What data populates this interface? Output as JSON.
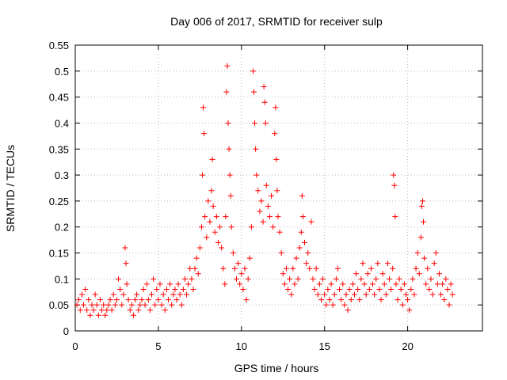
{
  "chart_data": {
    "type": "scatter",
    "title": "Day 006 of 2017, SRMTID for receiver sulp",
    "xlabel": "GPS time / hours",
    "ylabel": "SRMTID / TECUs",
    "xlim": [
      0,
      24.5
    ],
    "ylim": [
      0,
      0.55
    ],
    "x_ticks": [
      "0",
      "5",
      "10",
      "15",
      "20"
    ],
    "x_tick_values": [
      0,
      5,
      10,
      15,
      20
    ],
    "y_ticks": [
      "0",
      "0.05",
      "0.1",
      "0.15",
      "0.2",
      "0.25",
      "0.3",
      "0.35",
      "0.4",
      "0.45",
      "0.5",
      "0.55"
    ],
    "y_tick_values": [
      0,
      0.05,
      0.1,
      0.15,
      0.2,
      0.25,
      0.3,
      0.35,
      0.4,
      0.45,
      0.5,
      0.55
    ],
    "grid": true,
    "marker": "plus",
    "marker_color": "#ff0000",
    "series": [
      {
        "name": "SRMTID",
        "points": [
          [
            0.1,
            0.05
          ],
          [
            0.2,
            0.06
          ],
          [
            0.3,
            0.04
          ],
          [
            0.4,
            0.07
          ],
          [
            0.5,
            0.05
          ],
          [
            0.6,
            0.08
          ],
          [
            0.7,
            0.04
          ],
          [
            0.8,
            0.06
          ],
          [
            0.9,
            0.03
          ],
          [
            1.0,
            0.05
          ],
          [
            1.1,
            0.04
          ],
          [
            1.2,
            0.07
          ],
          [
            1.3,
            0.05
          ],
          [
            1.4,
            0.03
          ],
          [
            1.5,
            0.06
          ],
          [
            1.6,
            0.04
          ],
          [
            1.7,
            0.05
          ],
          [
            1.8,
            0.03
          ],
          [
            1.9,
            0.04
          ],
          [
            2.0,
            0.05
          ],
          [
            2.1,
            0.06
          ],
          [
            2.2,
            0.04
          ],
          [
            2.3,
            0.07
          ],
          [
            2.4,
            0.05
          ],
          [
            2.5,
            0.06
          ],
          [
            2.6,
            0.1
          ],
          [
            2.7,
            0.08
          ],
          [
            2.8,
            0.05
          ],
          [
            2.9,
            0.07
          ],
          [
            3.0,
            0.16
          ],
          [
            3.05,
            0.13
          ],
          [
            3.1,
            0.09
          ],
          [
            3.2,
            0.06
          ],
          [
            3.3,
            0.04
          ],
          [
            3.4,
            0.05
          ],
          [
            3.5,
            0.03
          ],
          [
            3.6,
            0.06
          ],
          [
            3.7,
            0.07
          ],
          [
            3.8,
            0.04
          ],
          [
            3.9,
            0.05
          ],
          [
            4.0,
            0.06
          ],
          [
            4.1,
            0.08
          ],
          [
            4.2,
            0.05
          ],
          [
            4.3,
            0.09
          ],
          [
            4.4,
            0.06
          ],
          [
            4.5,
            0.04
          ],
          [
            4.6,
            0.07
          ],
          [
            4.7,
            0.1
          ],
          [
            4.8,
            0.05
          ],
          [
            4.9,
            0.08
          ],
          [
            5.0,
            0.06
          ],
          [
            5.1,
            0.09
          ],
          [
            5.2,
            0.05
          ],
          [
            5.3,
            0.07
          ],
          [
            5.4,
            0.04
          ],
          [
            5.5,
            0.08
          ],
          [
            5.6,
            0.06
          ],
          [
            5.7,
            0.09
          ],
          [
            5.8,
            0.05
          ],
          [
            5.9,
            0.07
          ],
          [
            6.0,
            0.08
          ],
          [
            6.1,
            0.06
          ],
          [
            6.2,
            0.09
          ],
          [
            6.3,
            0.07
          ],
          [
            6.4,
            0.05
          ],
          [
            6.5,
            0.08
          ],
          [
            6.6,
            0.1
          ],
          [
            6.7,
            0.07
          ],
          [
            6.8,
            0.09
          ],
          [
            6.9,
            0.12
          ],
          [
            7.0,
            0.1
          ],
          [
            7.1,
            0.08
          ],
          [
            7.2,
            0.12
          ],
          [
            7.3,
            0.14
          ],
          [
            7.4,
            0.11
          ],
          [
            7.5,
            0.16
          ],
          [
            7.6,
            0.2
          ],
          [
            7.65,
            0.3
          ],
          [
            7.7,
            0.43
          ],
          [
            7.75,
            0.38
          ],
          [
            7.8,
            0.22
          ],
          [
            7.9,
            0.18
          ],
          [
            8.0,
            0.25
          ],
          [
            8.1,
            0.21
          ],
          [
            8.2,
            0.27
          ],
          [
            8.25,
            0.33
          ],
          [
            8.3,
            0.24
          ],
          [
            8.4,
            0.19
          ],
          [
            8.5,
            0.22
          ],
          [
            8.6,
            0.17
          ],
          [
            8.7,
            0.2
          ],
          [
            8.8,
            0.16
          ],
          [
            8.9,
            0.12
          ],
          [
            9.0,
            0.09
          ],
          [
            9.05,
            0.22
          ],
          [
            9.1,
            0.46
          ],
          [
            9.15,
            0.51
          ],
          [
            9.2,
            0.4
          ],
          [
            9.25,
            0.35
          ],
          [
            9.3,
            0.3
          ],
          [
            9.35,
            0.26
          ],
          [
            9.4,
            0.2
          ],
          [
            9.5,
            0.15
          ],
          [
            9.6,
            0.12
          ],
          [
            9.7,
            0.1
          ],
          [
            9.8,
            0.13
          ],
          [
            9.9,
            0.09
          ],
          [
            10.0,
            0.11
          ],
          [
            10.1,
            0.08
          ],
          [
            10.2,
            0.12
          ],
          [
            10.3,
            0.06
          ],
          [
            10.4,
            0.1
          ],
          [
            10.5,
            0.14
          ],
          [
            10.6,
            0.2
          ],
          [
            10.7,
            0.5
          ],
          [
            10.75,
            0.46
          ],
          [
            10.8,
            0.4
          ],
          [
            10.85,
            0.35
          ],
          [
            10.9,
            0.3
          ],
          [
            11.0,
            0.27
          ],
          [
            11.1,
            0.23
          ],
          [
            11.2,
            0.25
          ],
          [
            11.3,
            0.21
          ],
          [
            11.35,
            0.47
          ],
          [
            11.4,
            0.44
          ],
          [
            11.45,
            0.4
          ],
          [
            11.5,
            0.28
          ],
          [
            11.6,
            0.24
          ],
          [
            11.7,
            0.22
          ],
          [
            11.8,
            0.26
          ],
          [
            11.9,
            0.2
          ],
          [
            12.0,
            0.38
          ],
          [
            12.05,
            0.43
          ],
          [
            12.1,
            0.33
          ],
          [
            12.15,
            0.27
          ],
          [
            12.2,
            0.22
          ],
          [
            12.3,
            0.19
          ],
          [
            12.4,
            0.15
          ],
          [
            12.5,
            0.11
          ],
          [
            12.6,
            0.09
          ],
          [
            12.7,
            0.12
          ],
          [
            12.8,
            0.08
          ],
          [
            12.9,
            0.1
          ],
          [
            13.0,
            0.07
          ],
          [
            13.1,
            0.12
          ],
          [
            13.2,
            0.09
          ],
          [
            13.3,
            0.14
          ],
          [
            13.4,
            0.1
          ],
          [
            13.5,
            0.16
          ],
          [
            13.6,
            0.19
          ],
          [
            13.65,
            0.26
          ],
          [
            13.7,
            0.22
          ],
          [
            13.8,
            0.17
          ],
          [
            13.9,
            0.13
          ],
          [
            14.0,
            0.15
          ],
          [
            14.1,
            0.12
          ],
          [
            14.2,
            0.21
          ],
          [
            14.3,
            0.1
          ],
          [
            14.4,
            0.08
          ],
          [
            14.5,
            0.12
          ],
          [
            14.6,
            0.07
          ],
          [
            14.7,
            0.09
          ],
          [
            14.8,
            0.06
          ],
          [
            14.9,
            0.1
          ],
          [
            15.0,
            0.07
          ],
          [
            15.1,
            0.05
          ],
          [
            15.2,
            0.08
          ],
          [
            15.3,
            0.06
          ],
          [
            15.4,
            0.09
          ],
          [
            15.5,
            0.05
          ],
          [
            15.6,
            0.07
          ],
          [
            15.7,
            0.1
          ],
          [
            15.8,
            0.12
          ],
          [
            15.9,
            0.08
          ],
          [
            16.0,
            0.06
          ],
          [
            16.1,
            0.09
          ],
          [
            16.2,
            0.05
          ],
          [
            16.3,
            0.07
          ],
          [
            16.4,
            0.04
          ],
          [
            16.5,
            0.08
          ],
          [
            16.6,
            0.06
          ],
          [
            16.7,
            0.09
          ],
          [
            16.8,
            0.07
          ],
          [
            16.9,
            0.11
          ],
          [
            17.0,
            0.08
          ],
          [
            17.1,
            0.06
          ],
          [
            17.2,
            0.1
          ],
          [
            17.3,
            0.13
          ],
          [
            17.4,
            0.09
          ],
          [
            17.5,
            0.07
          ],
          [
            17.6,
            0.11
          ],
          [
            17.7,
            0.08
          ],
          [
            17.8,
            0.12
          ],
          [
            17.9,
            0.09
          ],
          [
            18.0,
            0.07
          ],
          [
            18.1,
            0.1
          ],
          [
            18.2,
            0.13
          ],
          [
            18.3,
            0.08
          ],
          [
            18.4,
            0.06
          ],
          [
            18.5,
            0.11
          ],
          [
            18.6,
            0.09
          ],
          [
            18.7,
            0.07
          ],
          [
            18.8,
            0.13
          ],
          [
            18.9,
            0.1
          ],
          [
            19.0,
            0.08
          ],
          [
            19.1,
            0.12
          ],
          [
            19.15,
            0.3
          ],
          [
            19.2,
            0.28
          ],
          [
            19.25,
            0.22
          ],
          [
            19.3,
            0.09
          ],
          [
            19.4,
            0.06
          ],
          [
            19.5,
            0.1
          ],
          [
            19.6,
            0.08
          ],
          [
            19.7,
            0.05
          ],
          [
            19.8,
            0.09
          ],
          [
            19.9,
            0.07
          ],
          [
            20.0,
            0.06
          ],
          [
            20.1,
            0.04
          ],
          [
            20.2,
            0.08
          ],
          [
            20.3,
            0.1
          ],
          [
            20.4,
            0.07
          ],
          [
            20.5,
            0.12
          ],
          [
            20.6,
            0.15
          ],
          [
            20.7,
            0.11
          ],
          [
            20.8,
            0.18
          ],
          [
            20.85,
            0.24
          ],
          [
            20.9,
            0.25
          ],
          [
            20.95,
            0.21
          ],
          [
            21.0,
            0.14
          ],
          [
            21.1,
            0.09
          ],
          [
            21.2,
            0.12
          ],
          [
            21.3,
            0.08
          ],
          [
            21.4,
            0.1
          ],
          [
            21.5,
            0.07
          ],
          [
            21.6,
            0.13
          ],
          [
            21.7,
            0.15
          ],
          [
            21.8,
            0.09
          ],
          [
            21.9,
            0.11
          ],
          [
            22.0,
            0.07
          ],
          [
            22.1,
            0.09
          ],
          [
            22.2,
            0.06
          ],
          [
            22.3,
            0.1
          ],
          [
            22.4,
            0.08
          ],
          [
            22.5,
            0.05
          ],
          [
            22.6,
            0.09
          ],
          [
            22.7,
            0.07
          ]
        ]
      }
    ]
  }
}
